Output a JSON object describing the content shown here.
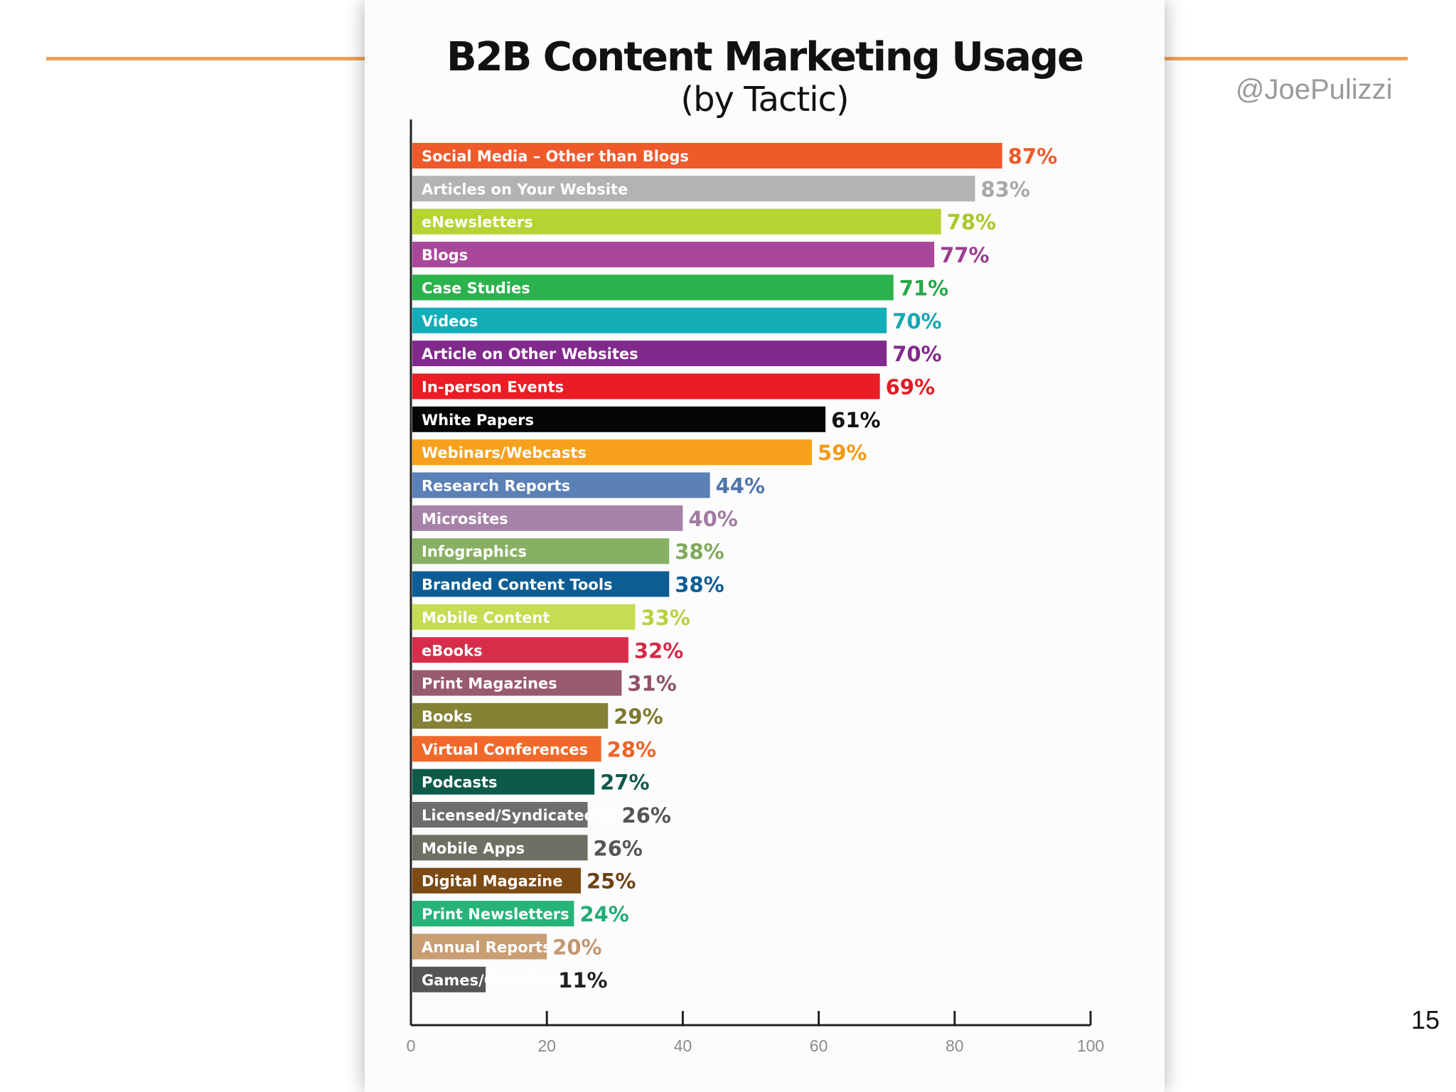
{
  "handle": "@JoePulizzi",
  "page_number": "15",
  "chart_data": {
    "type": "bar",
    "orientation": "horizontal",
    "title": "B2B Content Marketing Usage",
    "subtitle": "(by Tactic)",
    "xlim": [
      0,
      100
    ],
    "xticks": [
      0,
      20,
      40,
      60,
      80,
      100
    ],
    "grid": false,
    "categories": [
      "Social Media – Other than Blogs",
      "Articles on Your Website",
      "eNewsletters",
      "Blogs",
      "Case Studies",
      "Videos",
      "Article on Other Websites",
      "In-person Events",
      "White Papers",
      "Webinars/Webcasts",
      "Research Reports",
      "Microsites",
      "Infographics",
      "Branded Content Tools",
      "Mobile Content",
      "eBooks",
      "Print Magazines",
      "Books",
      "Virtual Conferences",
      "Podcasts",
      "Licensed/Syndicated Content",
      "Mobile Apps",
      "Digital Magazine",
      "Print Newsletters",
      "Annual Reports",
      "Games/Gamification"
    ],
    "values": [
      87,
      83,
      78,
      77,
      71,
      70,
      70,
      69,
      61,
      59,
      44,
      40,
      38,
      38,
      33,
      32,
      31,
      29,
      28,
      27,
      26,
      26,
      25,
      24,
      20,
      11
    ],
    "value_labels": [
      "87%",
      "83%",
      "78%",
      "77%",
      "71%",
      "70%",
      "70%",
      "69%",
      "61%",
      "59%",
      "44%",
      "40%",
      "38%",
      "38%",
      "33%",
      "32%",
      "31%",
      "29%",
      "28%",
      "27%",
      "26%",
      "26%",
      "25%",
      "24%",
      "20%",
      "11%"
    ],
    "colors": [
      "#ef5a2b",
      "#b3b3b3",
      "#b5d334",
      "#a9489b",
      "#2bb24c",
      "#12adb7",
      "#822a8c",
      "#ec1c24",
      "#050505",
      "#f6a01e",
      "#5a80b6",
      "#a682a8",
      "#88b063",
      "#0d5d94",
      "#c6dc52",
      "#d72d4a",
      "#985a6e",
      "#848235",
      "#f1692a",
      "#0e5a49",
      "#6d6d6d",
      "#6f6f63",
      "#7d4a14",
      "#27b379",
      "#c89e73",
      "#555555"
    ],
    "label_colors": [
      "#ef5a2b",
      "#a8a8a8",
      "#a9c92a",
      "#9a3f91",
      "#26a848",
      "#12a8b3",
      "#822a8c",
      "#e31c24",
      "#111111",
      "#f39a14",
      "#4e74ab",
      "#a07ba2",
      "#7ea95a",
      "#0d5d94",
      "#b9d040",
      "#d22b47",
      "#8e5367",
      "#7d7a30",
      "#ef6328",
      "#0e5a49",
      "#555555",
      "#555555",
      "#6e4213",
      "#22ad74",
      "#c49670",
      "#222222"
    ]
  }
}
